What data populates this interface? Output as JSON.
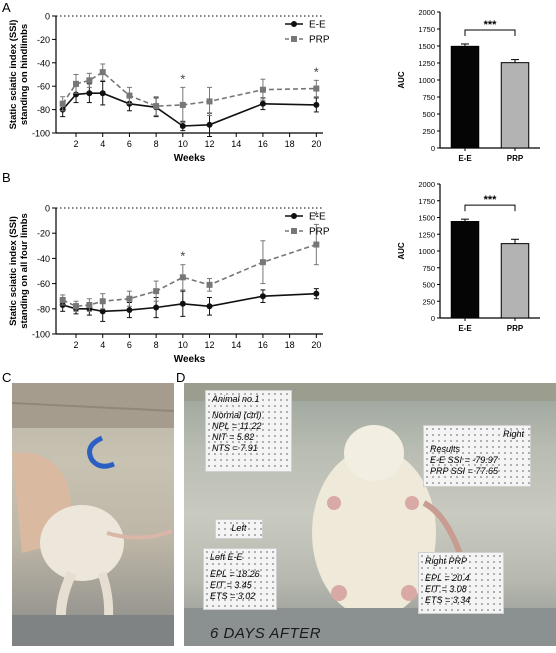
{
  "panels": {
    "A": "A",
    "B": "B",
    "C": "C",
    "D": "D"
  },
  "chart_data": [
    {
      "id": "A-line",
      "type": "line",
      "ylabel": "Static sciatic index (SSI) standing on hindlimbs",
      "xlabel": "Weeks",
      "x": [
        1,
        2,
        3,
        4,
        6,
        8,
        10,
        12,
        16,
        20
      ],
      "xticks": [
        2,
        4,
        6,
        8,
        10,
        12,
        14,
        16,
        18,
        20
      ],
      "yticks": [
        0,
        -20,
        -40,
        -60,
        -80,
        -100
      ],
      "ylim": [
        -100,
        0
      ],
      "xlim": [
        0.5,
        20.5
      ],
      "reference_line": 0,
      "series": [
        {
          "name": "E-E",
          "style": "solid",
          "marker": "circle",
          "color": "#111111",
          "values": [
            -80,
            -67,
            -66,
            -66,
            -75,
            -78,
            -94,
            -93,
            -75,
            -76
          ],
          "errors": [
            6,
            7,
            8,
            10,
            6,
            8,
            4,
            10,
            5,
            6
          ]
        },
        {
          "name": "PRP",
          "style": "dashed",
          "marker": "square",
          "color": "#777777",
          "values": [
            -75,
            -58,
            -55,
            -48,
            -68,
            -77,
            -76,
            -73,
            -63,
            -62
          ],
          "errors": [
            6,
            8,
            6,
            7,
            7,
            8,
            15,
            12,
            9,
            7
          ]
        }
      ],
      "annotations": [
        {
          "x": 10,
          "text": "*"
        },
        {
          "x": 20,
          "text": "*"
        }
      ],
      "legend_position": "top-right"
    },
    {
      "id": "A-bar",
      "type": "bar",
      "categories": [
        "E-E",
        "PRP"
      ],
      "values": [
        1495,
        1255
      ],
      "errors": [
        35,
        45
      ],
      "colors": [
        "#050505",
        "#b3b3b3"
      ],
      "ylabel": "AUC",
      "ylim": [
        0,
        2000
      ],
      "yticks": [
        0,
        250,
        500,
        750,
        1000,
        1250,
        1500,
        1750,
        2000
      ],
      "significance": "***"
    },
    {
      "id": "B-line",
      "type": "line",
      "ylabel": "Static sciatic index (SSI) standing on all four limbs",
      "xlabel": "Weeks",
      "x": [
        1,
        2,
        3,
        4,
        6,
        8,
        10,
        12,
        16,
        20
      ],
      "xticks": [
        2,
        4,
        6,
        8,
        10,
        12,
        14,
        16,
        18,
        20
      ],
      "yticks": [
        0,
        -20,
        -40,
        -60,
        -80,
        -100
      ],
      "ylim": [
        -100,
        0
      ],
      "xlim": [
        0.5,
        20.5
      ],
      "reference_line": 0,
      "series": [
        {
          "name": "E-E",
          "style": "solid",
          "marker": "circle",
          "color": "#111111",
          "values": [
            -77,
            -80,
            -80,
            -82,
            -81,
            -79,
            -76,
            -78,
            -70,
            -68
          ],
          "errors": [
            5,
            4,
            5,
            8,
            6,
            8,
            10,
            7,
            5,
            4
          ]
        },
        {
          "name": "PRP",
          "style": "dashed",
          "marker": "square",
          "color": "#777777",
          "values": [
            -73,
            -78,
            -77,
            -74,
            -72,
            -66,
            -55,
            -61,
            -43,
            -29
          ],
          "errors": [
            4,
            4,
            5,
            6,
            6,
            8,
            10,
            5,
            17,
            16
          ]
        }
      ],
      "annotations": [
        {
          "x": 10,
          "text": "*"
        },
        {
          "x": 20,
          "text": "*"
        }
      ],
      "legend_position": "top-right"
    },
    {
      "id": "B-bar",
      "type": "bar",
      "categories": [
        "E-E",
        "PRP"
      ],
      "values": [
        1440,
        1110
      ],
      "errors": [
        35,
        65
      ],
      "colors": [
        "#050505",
        "#b3b3b3"
      ],
      "ylabel": "AUC",
      "ylim": [
        0,
        2000
      ],
      "yticks": [
        0,
        250,
        500,
        750,
        1000,
        1250,
        1500,
        1750,
        2000
      ],
      "significance": "***"
    }
  ],
  "photo_d": {
    "animal_box": {
      "title": "Animal no.1",
      "subtitle": "Normal (ctrl)",
      "lines": [
        "NPL = 11.22",
        "NIT = 5.82",
        "NTS = 7.91"
      ]
    },
    "right_box": {
      "title": "Right",
      "heading": "Results",
      "lines": [
        "E-E SSI = -79.97",
        "PRP SSI = 77.65"
      ]
    },
    "left_label": "Left",
    "left_box": {
      "title": "Left E-E",
      "lines": [
        "EPL = 18.26",
        "EIT = 3.45",
        "ETS = 3.02"
      ]
    },
    "right_prp_box": {
      "title": "Right PRP",
      "lines": [
        "EPL = 20.4",
        "EIT = 3.08",
        "ETS = 3.34"
      ]
    },
    "caption": "6  DAYS AFTER"
  }
}
